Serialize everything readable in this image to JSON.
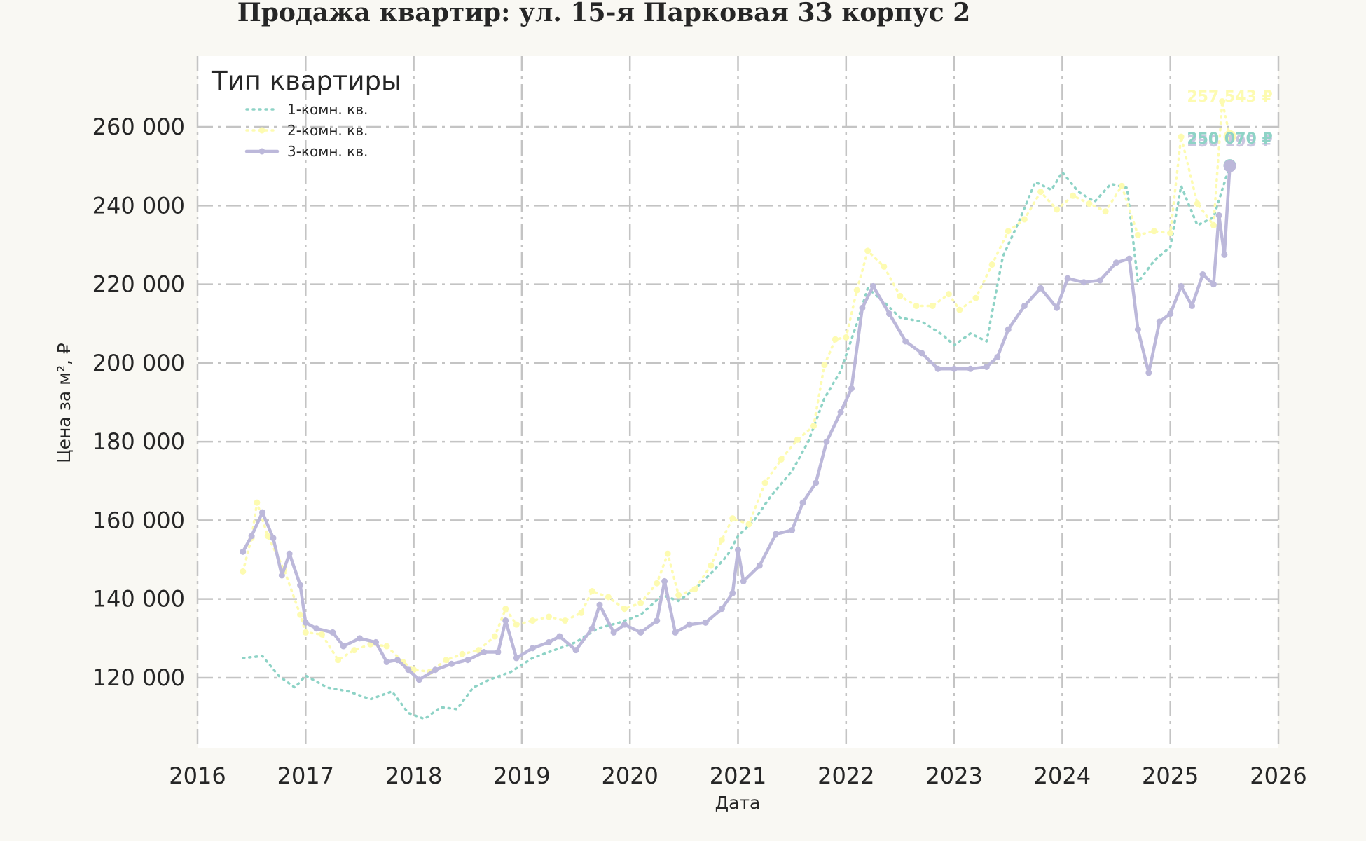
{
  "colors": {
    "background": "#f9f8f3",
    "plot_background": "#ffffff",
    "series": [
      "#8ed3c6",
      "#fdfbb1",
      "#bcb8da"
    ]
  },
  "chart_data": {
    "type": "line",
    "title": "Продажа квартир: ул. 15-я Парковая 33 корпус 2",
    "xlabel": "Дата",
    "ylabel": "Цена за м², ₽",
    "xlim": [
      2016.0,
      2026.0
    ],
    "ylim": [
      102000,
      278000
    ],
    "x_ticks": [
      "2016",
      "2017",
      "2018",
      "2019",
      "2020",
      "2021",
      "2022",
      "2023",
      "2024",
      "2025",
      "2026"
    ],
    "y_ticks": [
      "120 000",
      "140 000",
      "160 000",
      "180 000",
      "200 000",
      "220 000",
      "240 000",
      "260 000"
    ],
    "y_tick_values": [
      120000,
      140000,
      160000,
      180000,
      200000,
      220000,
      240000,
      260000
    ],
    "grid": true,
    "legend": {
      "title": "Тип квартиры",
      "placement": "top-left",
      "entries": [
        "1-комн. кв.",
        "2-комн. кв.",
        "3-комн. кв."
      ]
    },
    "series": [
      {
        "name": "1-комн. кв.",
        "style": "dotted",
        "end_label": "250 195 ₽",
        "points": [
          [
            2016.42,
            125000
          ],
          [
            2016.6,
            125500
          ],
          [
            2016.75,
            120500
          ],
          [
            2016.9,
            117500
          ],
          [
            2017.0,
            120500
          ],
          [
            2017.2,
            117500
          ],
          [
            2017.4,
            116500
          ],
          [
            2017.6,
            114500
          ],
          [
            2017.8,
            116500
          ],
          [
            2017.95,
            111000
          ],
          [
            2018.1,
            109500
          ],
          [
            2018.25,
            112500
          ],
          [
            2018.4,
            112000
          ],
          [
            2018.55,
            117500
          ],
          [
            2018.7,
            119500
          ],
          [
            2018.9,
            121500
          ],
          [
            2019.1,
            125000
          ],
          [
            2019.3,
            127000
          ],
          [
            2019.5,
            129000
          ],
          [
            2019.7,
            132500
          ],
          [
            2019.9,
            134000
          ],
          [
            2020.1,
            136000
          ],
          [
            2020.3,
            141000
          ],
          [
            2020.45,
            139500
          ],
          [
            2020.6,
            142500
          ],
          [
            2020.75,
            146500
          ],
          [
            2020.9,
            151000
          ],
          [
            2021.0,
            156000
          ],
          [
            2021.15,
            160000
          ],
          [
            2021.3,
            166000
          ],
          [
            2021.5,
            172500
          ],
          [
            2021.65,
            180000
          ],
          [
            2021.8,
            191000
          ],
          [
            2021.95,
            198000
          ],
          [
            2022.1,
            210000
          ],
          [
            2022.2,
            219000
          ],
          [
            2022.35,
            215500
          ],
          [
            2022.5,
            211500
          ],
          [
            2022.7,
            210500
          ],
          [
            2022.9,
            207000
          ],
          [
            2023.0,
            204500
          ],
          [
            2023.15,
            207500
          ],
          [
            2023.3,
            205500
          ],
          [
            2023.45,
            227000
          ],
          [
            2023.6,
            236000
          ],
          [
            2023.75,
            246000
          ],
          [
            2023.9,
            244000
          ],
          [
            2024.0,
            248500
          ],
          [
            2024.15,
            243500
          ],
          [
            2024.3,
            241000
          ],
          [
            2024.45,
            245500
          ],
          [
            2024.6,
            244500
          ],
          [
            2024.7,
            220500
          ],
          [
            2024.85,
            226000
          ],
          [
            2025.0,
            229500
          ],
          [
            2025.1,
            245000
          ],
          [
            2025.25,
            235000
          ],
          [
            2025.4,
            237000
          ],
          [
            2025.55,
            250195
          ]
        ]
      },
      {
        "name": "2-комн. кв.",
        "style": "dotted-markers",
        "end_label": "257 543 ₽",
        "points": [
          [
            2016.42,
            147000
          ],
          [
            2016.5,
            155500
          ],
          [
            2016.55,
            164500
          ],
          [
            2016.65,
            156000
          ],
          [
            2016.8,
            147500
          ],
          [
            2016.95,
            136000
          ],
          [
            2017.0,
            131500
          ],
          [
            2017.15,
            131000
          ],
          [
            2017.3,
            124500
          ],
          [
            2017.45,
            127000
          ],
          [
            2017.6,
            128500
          ],
          [
            2017.75,
            128000
          ],
          [
            2017.9,
            124000
          ],
          [
            2018.0,
            122000
          ],
          [
            2018.15,
            121500
          ],
          [
            2018.3,
            124500
          ],
          [
            2018.45,
            126000
          ],
          [
            2018.6,
            127000
          ],
          [
            2018.75,
            130500
          ],
          [
            2018.85,
            137500
          ],
          [
            2018.95,
            133500
          ],
          [
            2019.1,
            134500
          ],
          [
            2019.25,
            135500
          ],
          [
            2019.4,
            134500
          ],
          [
            2019.55,
            136500
          ],
          [
            2019.65,
            142000
          ],
          [
            2019.8,
            140500
          ],
          [
            2019.95,
            137500
          ],
          [
            2020.1,
            139000
          ],
          [
            2020.25,
            144000
          ],
          [
            2020.35,
            151500
          ],
          [
            2020.45,
            141000
          ],
          [
            2020.6,
            142500
          ],
          [
            2020.75,
            148500
          ],
          [
            2020.85,
            155000
          ],
          [
            2020.95,
            160500
          ],
          [
            2021.1,
            159000
          ],
          [
            2021.25,
            169500
          ],
          [
            2021.4,
            175500
          ],
          [
            2021.55,
            180500
          ],
          [
            2021.7,
            184000
          ],
          [
            2021.8,
            199500
          ],
          [
            2021.9,
            206000
          ],
          [
            2022.0,
            206500
          ],
          [
            2022.1,
            218500
          ],
          [
            2022.2,
            228500
          ],
          [
            2022.35,
            224500
          ],
          [
            2022.5,
            217000
          ],
          [
            2022.65,
            214500
          ],
          [
            2022.8,
            214500
          ],
          [
            2022.95,
            217500
          ],
          [
            2023.05,
            213500
          ],
          [
            2023.2,
            216500
          ],
          [
            2023.35,
            225000
          ],
          [
            2023.5,
            233500
          ],
          [
            2023.65,
            236500
          ],
          [
            2023.8,
            243500
          ],
          [
            2023.95,
            239000
          ],
          [
            2024.1,
            242500
          ],
          [
            2024.25,
            240500
          ],
          [
            2024.4,
            238500
          ],
          [
            2024.55,
            245000
          ],
          [
            2024.7,
            232500
          ],
          [
            2024.85,
            233500
          ],
          [
            2025.0,
            233000
          ],
          [
            2025.1,
            257500
          ],
          [
            2025.25,
            240500
          ],
          [
            2025.4,
            235000
          ],
          [
            2025.48,
            266500
          ],
          [
            2025.55,
            257543
          ]
        ]
      },
      {
        "name": "3-комн. кв.",
        "style": "solid-markers",
        "end_label": "250 070 ₽",
        "points": [
          [
            2016.42,
            152000
          ],
          [
            2016.5,
            156000
          ],
          [
            2016.6,
            162000
          ],
          [
            2016.7,
            155500
          ],
          [
            2016.78,
            146000
          ],
          [
            2016.85,
            151500
          ],
          [
            2016.95,
            143500
          ],
          [
            2017.0,
            134000
          ],
          [
            2017.1,
            132500
          ],
          [
            2017.25,
            131500
          ],
          [
            2017.35,
            128000
          ],
          [
            2017.5,
            130000
          ],
          [
            2017.65,
            129000
          ],
          [
            2017.75,
            124000
          ],
          [
            2017.85,
            124500
          ],
          [
            2017.95,
            122000
          ],
          [
            2018.05,
            119500
          ],
          [
            2018.2,
            122000
          ],
          [
            2018.35,
            123500
          ],
          [
            2018.5,
            124500
          ],
          [
            2018.65,
            126500
          ],
          [
            2018.78,
            126500
          ],
          [
            2018.85,
            134500
          ],
          [
            2018.95,
            125000
          ],
          [
            2019.1,
            127500
          ],
          [
            2019.25,
            129000
          ],
          [
            2019.35,
            130500
          ],
          [
            2019.5,
            127000
          ],
          [
            2019.65,
            132500
          ],
          [
            2019.72,
            138500
          ],
          [
            2019.85,
            131500
          ],
          [
            2019.95,
            133500
          ],
          [
            2020.1,
            131500
          ],
          [
            2020.25,
            134500
          ],
          [
            2020.32,
            144500
          ],
          [
            2020.42,
            131500
          ],
          [
            2020.55,
            133500
          ],
          [
            2020.7,
            134000
          ],
          [
            2020.85,
            137500
          ],
          [
            2020.95,
            141500
          ],
          [
            2021.0,
            152500
          ],
          [
            2021.05,
            144500
          ],
          [
            2021.2,
            148500
          ],
          [
            2021.35,
            156500
          ],
          [
            2021.5,
            157500
          ],
          [
            2021.6,
            164500
          ],
          [
            2021.72,
            169500
          ],
          [
            2021.82,
            180000
          ],
          [
            2021.95,
            187500
          ],
          [
            2022.05,
            193500
          ],
          [
            2022.15,
            214000
          ],
          [
            2022.25,
            219500
          ],
          [
            2022.4,
            212500
          ],
          [
            2022.55,
            205500
          ],
          [
            2022.7,
            202500
          ],
          [
            2022.85,
            198500
          ],
          [
            2023.0,
            198500
          ],
          [
            2023.15,
            198500
          ],
          [
            2023.3,
            199000
          ],
          [
            2023.4,
            201500
          ],
          [
            2023.5,
            208500
          ],
          [
            2023.65,
            214500
          ],
          [
            2023.8,
            219000
          ],
          [
            2023.95,
            214000
          ],
          [
            2024.05,
            221500
          ],
          [
            2024.2,
            220500
          ],
          [
            2024.35,
            221000
          ],
          [
            2024.5,
            225500
          ],
          [
            2024.62,
            226500
          ],
          [
            2024.7,
            208500
          ],
          [
            2024.8,
            197500
          ],
          [
            2024.9,
            210500
          ],
          [
            2025.0,
            212500
          ],
          [
            2025.1,
            219500
          ],
          [
            2025.2,
            214500
          ],
          [
            2025.3,
            222500
          ],
          [
            2025.4,
            220000
          ],
          [
            2025.45,
            237500
          ],
          [
            2025.5,
            227500
          ],
          [
            2025.55,
            250070
          ]
        ]
      }
    ]
  }
}
